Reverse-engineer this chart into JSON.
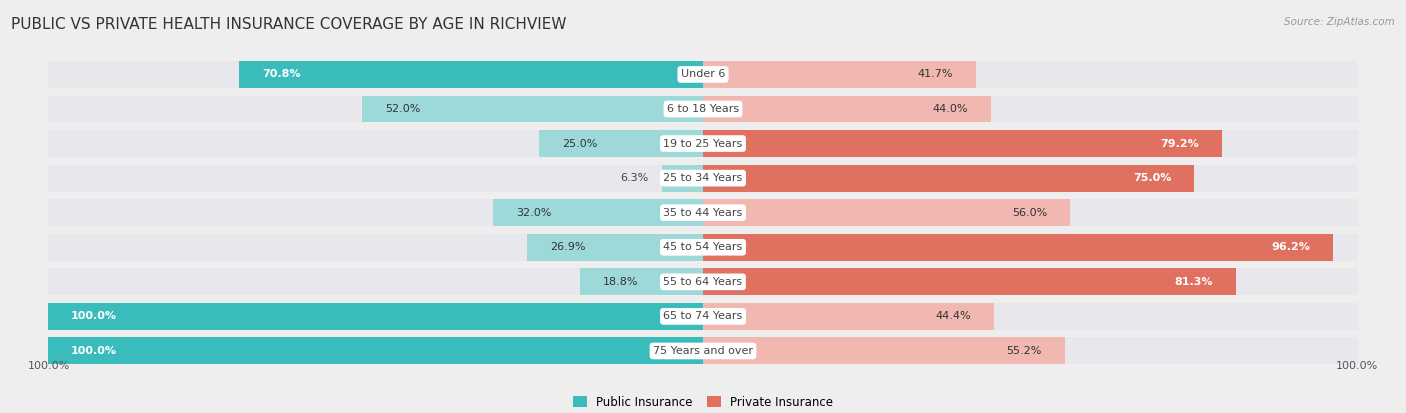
{
  "title": "PUBLIC VS PRIVATE HEALTH INSURANCE COVERAGE BY AGE IN RICHVIEW",
  "source": "Source: ZipAtlas.com",
  "categories": [
    "Under 6",
    "6 to 18 Years",
    "19 to 25 Years",
    "25 to 34 Years",
    "35 to 44 Years",
    "45 to 54 Years",
    "55 to 64 Years",
    "65 to 74 Years",
    "75 Years and over"
  ],
  "public_values": [
    70.8,
    52.0,
    25.0,
    6.3,
    32.0,
    26.9,
    18.8,
    100.0,
    100.0
  ],
  "private_values": [
    41.7,
    44.0,
    79.2,
    75.0,
    56.0,
    96.2,
    81.3,
    44.4,
    55.2
  ],
  "public_color_strong": "#3bbcbc",
  "public_color_light": "#9dd9d9",
  "private_color_strong": "#e07060",
  "private_color_light": "#f0b8b0",
  "bg_color": "#eeeeee",
  "bar_bg_color": "#e8e8ec",
  "bar_height": 0.78,
  "max_value": 100.0,
  "title_fontsize": 11,
  "label_fontsize": 8,
  "category_fontsize": 8,
  "source_fontsize": 7.5,
  "strong_threshold": 60.0
}
